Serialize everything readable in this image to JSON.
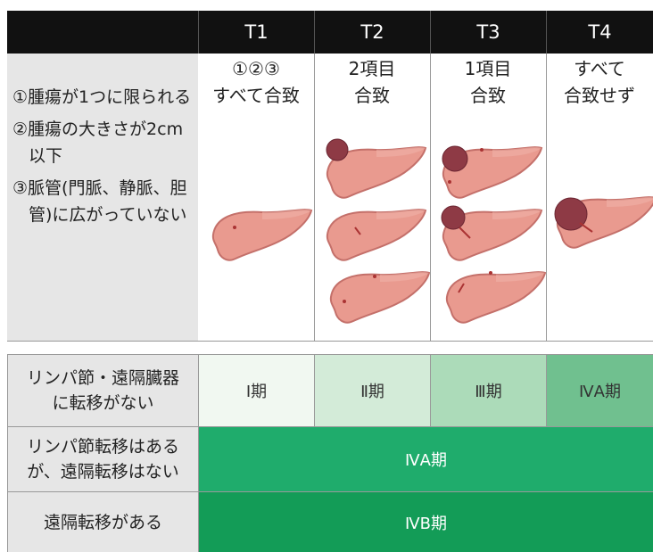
{
  "header": {
    "columns": [
      "T1",
      "T2",
      "T3",
      "T4"
    ]
  },
  "criteria": [
    "①腫瘍が1つに限られる",
    "②腫瘍の大きさが2cm以下",
    "③脈管(門脈、静脈、胆管)に広がっていない"
  ],
  "conditions": [
    [
      "①②③",
      "すべて合致"
    ],
    [
      "2項目",
      "合致"
    ],
    [
      "1項目",
      "合致"
    ],
    [
      "すべて",
      "合致せず"
    ]
  ],
  "stages": [
    {
      "label": [
        "リンパ節・遠隔臓器",
        "に転移がない"
      ],
      "cells": [
        "Ⅰ期",
        "Ⅱ期",
        "Ⅲ期",
        "ⅣA期"
      ]
    },
    {
      "label": [
        "リンパ節転移はある",
        "が、遠隔転移はない"
      ],
      "cells": [
        "ⅣA期"
      ]
    },
    {
      "label": [
        "遠隔転移がある"
      ],
      "cells": [
        "ⅣB期"
      ]
    }
  ]
}
